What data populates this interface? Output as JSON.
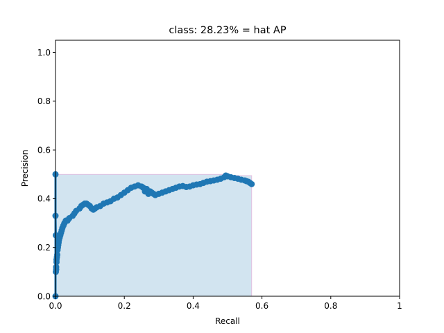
{
  "chart_data": {
    "type": "line",
    "title": "class: 28.23% = hat AP",
    "xlabel": "Recall",
    "ylabel": "Precision",
    "xlim": [
      0,
      1
    ],
    "ylim": [
      0,
      1.05
    ],
    "xticks": [
      0,
      0.2,
      0.4,
      0.6,
      0.8,
      1
    ],
    "xtick_labels": [
      "0.0",
      "0.2",
      "0.4",
      "0.6",
      "0.8",
      "1"
    ],
    "yticks": [
      0,
      0.2,
      0.4,
      0.6,
      0.8,
      1.0
    ],
    "ytick_labels": [
      "0.0",
      "0.2",
      "0.4",
      "0.6",
      "0.8",
      "1.0"
    ],
    "grid": false,
    "colors": {
      "line": "#1f77b4",
      "fill": "#1f77b4",
      "envelope": "#e377c2"
    },
    "series": [
      {
        "x": [
          0.0,
          0.0,
          0.0,
          0.001,
          0.001,
          0.002,
          0.002,
          0.003,
          0.003,
          0.004,
          0.005,
          0.006,
          0.007,
          0.008,
          0.009,
          0.01,
          0.012,
          0.014,
          0.016,
          0.018,
          0.02,
          0.023,
          0.026,
          0.03,
          0.035,
          0.04,
          0.05,
          0.055,
          0.06,
          0.07,
          0.075,
          0.08,
          0.085,
          0.09,
          0.095,
          0.1,
          0.105,
          0.11,
          0.115,
          0.12,
          0.13,
          0.14,
          0.15,
          0.16,
          0.17,
          0.18,
          0.19,
          0.2,
          0.21,
          0.22,
          0.23,
          0.24,
          0.25,
          0.255,
          0.26,
          0.265,
          0.27,
          0.275,
          0.28,
          0.285,
          0.29,
          0.3,
          0.31,
          0.32,
          0.33,
          0.34,
          0.35,
          0.36,
          0.37,
          0.38,
          0.39,
          0.4,
          0.41,
          0.42,
          0.43,
          0.44,
          0.45,
          0.46,
          0.47,
          0.48,
          0.49,
          0.495,
          0.5,
          0.51,
          0.52,
          0.53,
          0.54,
          0.55,
          0.555,
          0.56,
          0.565,
          0.57
        ],
        "y": [
          0.0,
          0.5,
          0.33,
          0.25,
          0.1,
          0.11,
          0.12,
          0.14,
          0.15,
          0.16,
          0.17,
          0.19,
          0.2,
          0.21,
          0.22,
          0.23,
          0.24,
          0.25,
          0.26,
          0.27,
          0.28,
          0.29,
          0.3,
          0.31,
          0.31,
          0.32,
          0.33,
          0.34,
          0.35,
          0.36,
          0.37,
          0.375,
          0.38,
          0.38,
          0.375,
          0.37,
          0.36,
          0.355,
          0.36,
          0.365,
          0.37,
          0.38,
          0.385,
          0.39,
          0.4,
          0.405,
          0.415,
          0.425,
          0.435,
          0.445,
          0.45,
          0.455,
          0.45,
          0.445,
          0.43,
          0.44,
          0.42,
          0.43,
          0.425,
          0.42,
          0.415,
          0.42,
          0.425,
          0.43,
          0.435,
          0.44,
          0.445,
          0.45,
          0.452,
          0.448,
          0.45,
          0.455,
          0.458,
          0.46,
          0.465,
          0.47,
          0.472,
          0.475,
          0.478,
          0.482,
          0.488,
          0.495,
          0.492,
          0.488,
          0.485,
          0.482,
          0.478,
          0.475,
          0.472,
          0.47,
          0.465,
          0.46
        ]
      }
    ],
    "envelope": {
      "x": [
        0,
        0,
        0.495,
        0.495,
        0.57,
        0.57
      ],
      "y": [
        0,
        0.5,
        0.5,
        0.495,
        0.495,
        0
      ]
    }
  }
}
